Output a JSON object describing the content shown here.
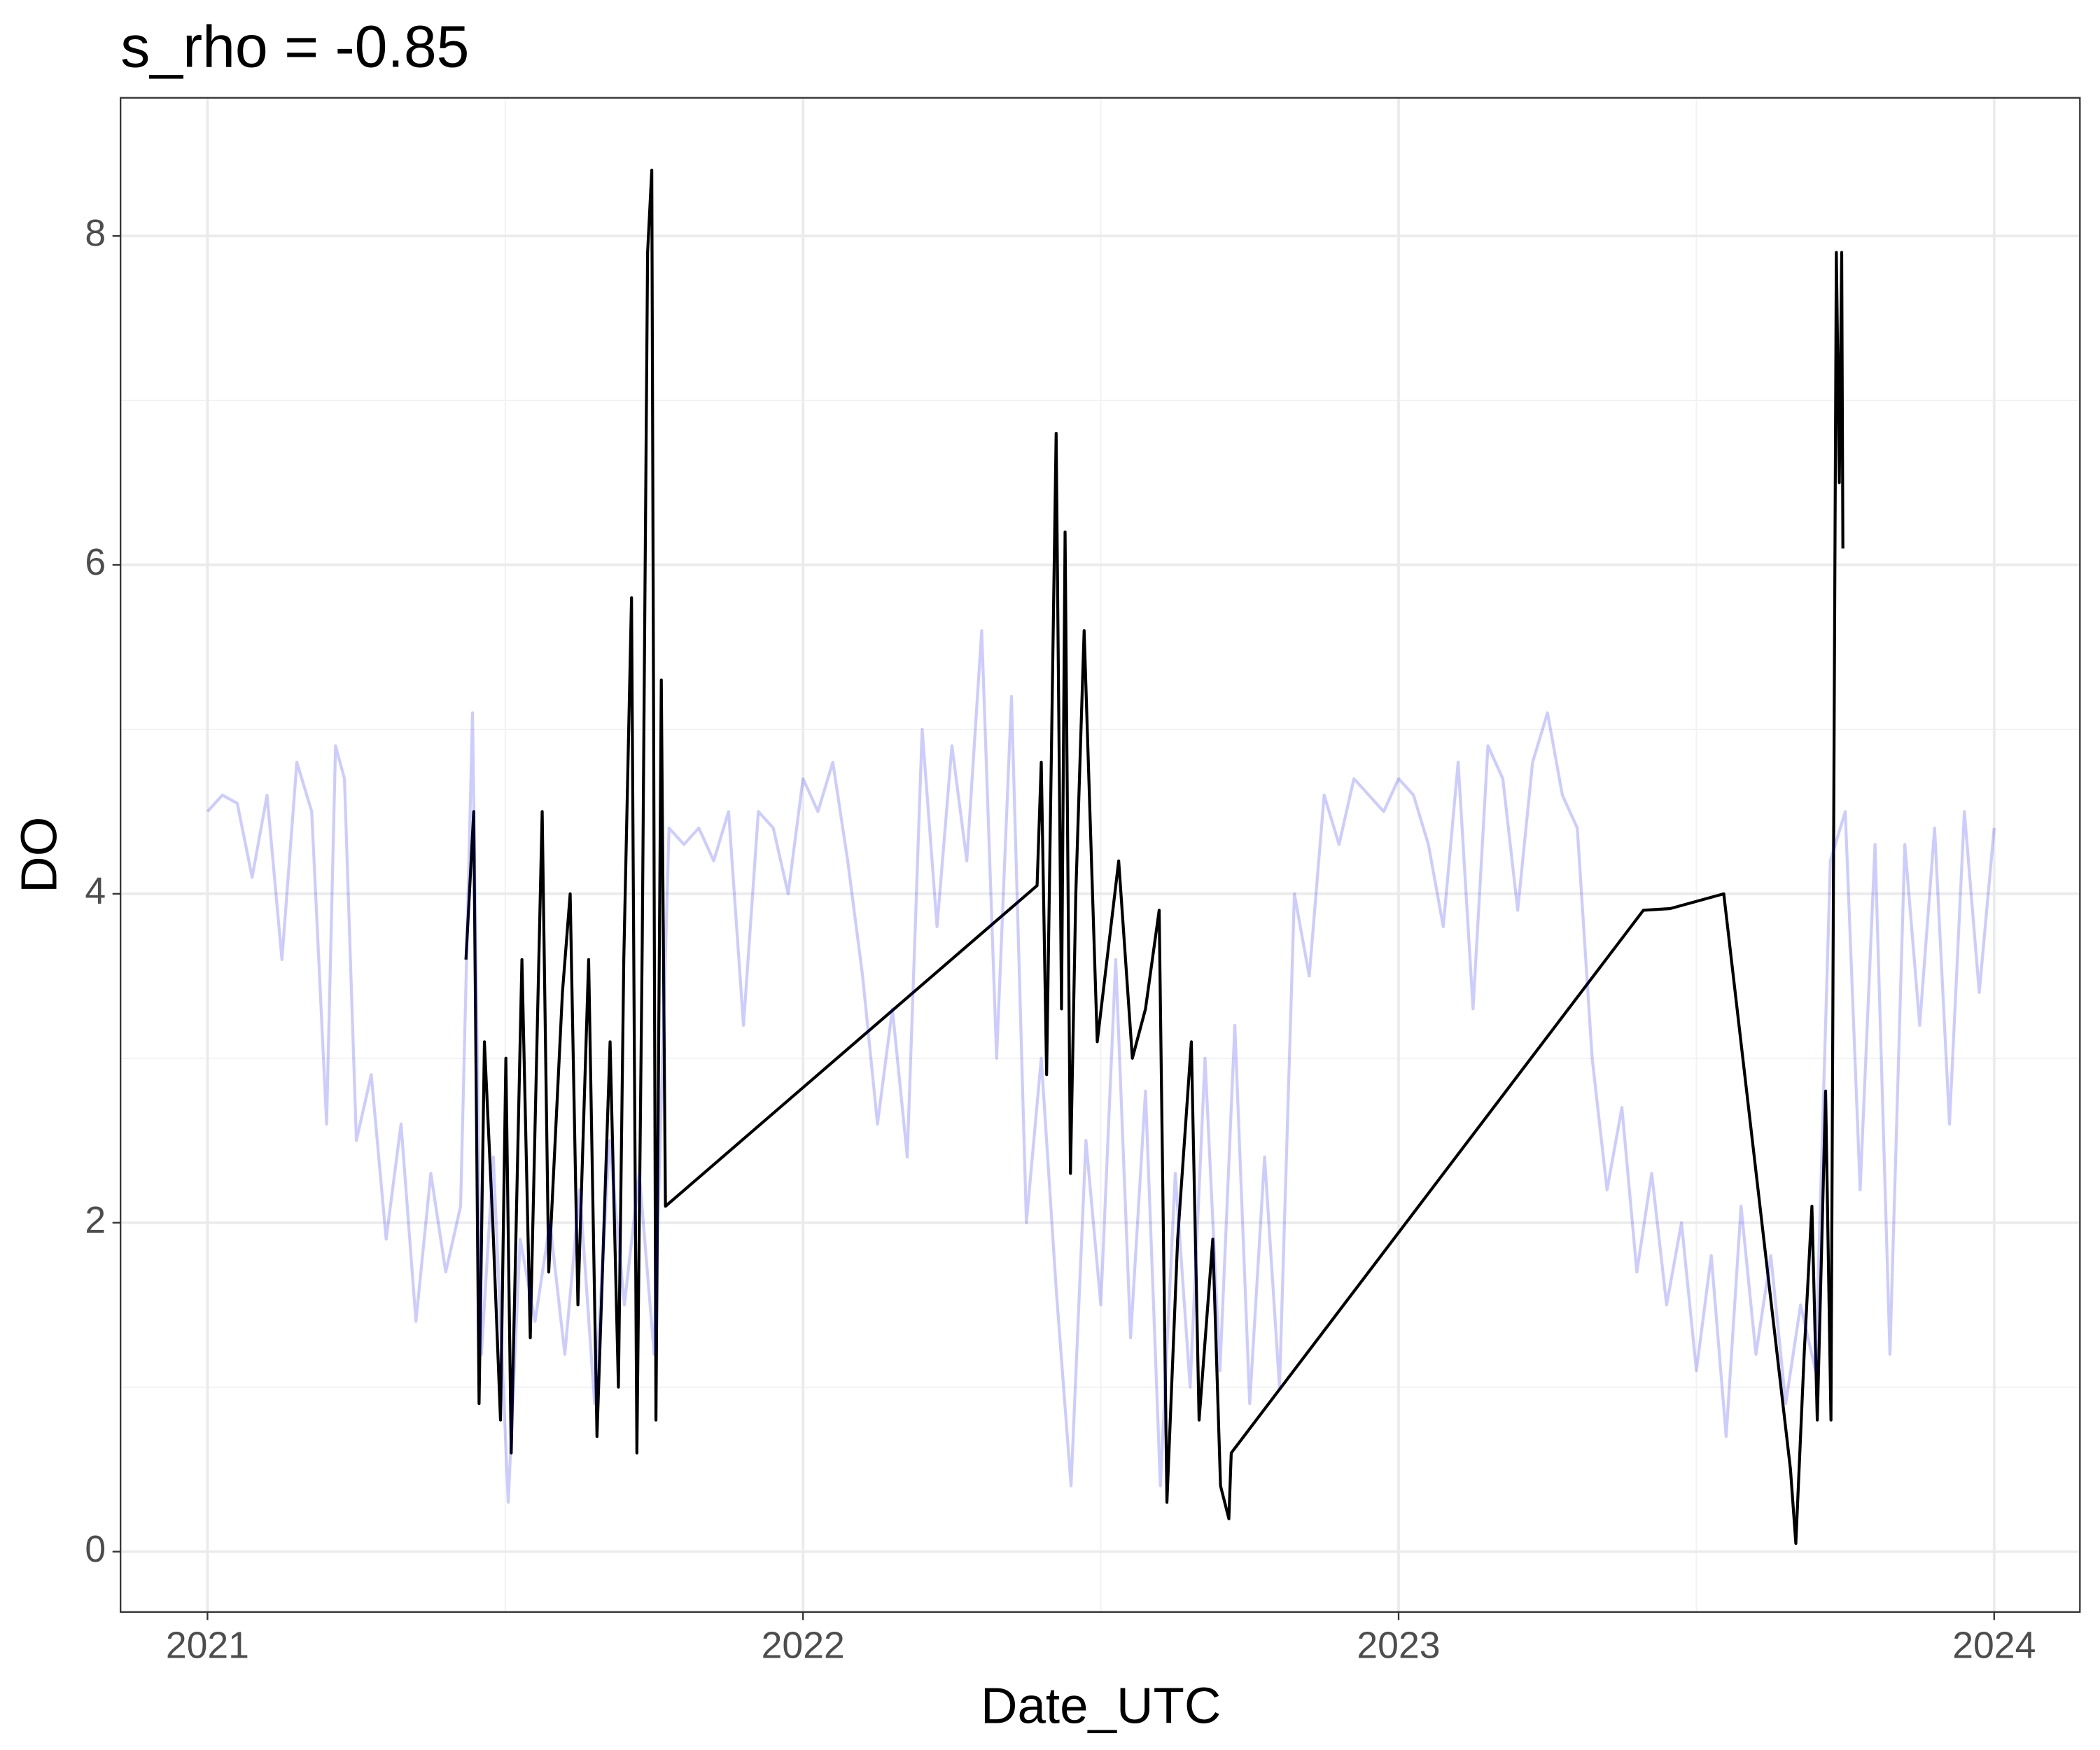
{
  "chart_data": {
    "type": "line",
    "title": "s_rho = -0.85",
    "x_label": "Date_UTC",
    "y_label": "DO",
    "xlim": [
      2020.854,
      2024.144
    ],
    "ylim": [
      -0.367,
      8.84
    ],
    "xticks": [
      2021,
      2022,
      2023,
      2024
    ],
    "yticks": [
      0,
      2,
      4,
      6,
      8
    ],
    "x_minor_ticks": [
      2021.5,
      2022.5,
      2023.5
    ],
    "y_minor_ticks": [
      1,
      3,
      5,
      7
    ],
    "grid": true,
    "series": [
      {
        "color": "#000000",
        "opacity": 1,
        "x": [
          2021.434,
          2021.447,
          2021.456,
          2021.465,
          2021.479,
          2021.492,
          2021.501,
          2021.51,
          2021.528,
          2021.542,
          2021.562,
          2021.573,
          2021.596,
          2021.609,
          2021.622,
          2021.64,
          2021.654,
          2021.676,
          2021.69,
          2021.699,
          2021.712,
          2021.721,
          2021.73,
          2021.739,
          2021.746,
          2021.753,
          2021.762,
          2021.769,
          2022.393,
          2022.4,
          2022.409,
          2022.425,
          2022.434,
          2022.44,
          2022.449,
          2022.458,
          2022.472,
          2022.494,
          2022.53,
          2022.553,
          2022.575,
          2022.598,
          2022.611,
          2022.629,
          2022.652,
          2022.665,
          2022.688,
          2022.701,
          2022.715,
          2022.719,
          2023.411,
          2023.456,
          2023.546,
          2023.658,
          2023.667,
          2023.681,
          2023.694,
          2023.703,
          2023.717,
          2023.726,
          2023.735,
          2023.74,
          2023.744,
          2023.746
        ],
        "values": [
          3.6,
          4.5,
          0.9,
          3.1,
          2.0,
          0.8,
          3.0,
          0.6,
          3.6,
          1.3,
          4.5,
          1.7,
          3.4,
          4.0,
          1.5,
          3.6,
          0.7,
          3.1,
          1.0,
          3.6,
          5.8,
          0.6,
          3.7,
          7.9,
          8.4,
          0.8,
          5.3,
          2.1,
          4.05,
          4.8,
          2.9,
          6.8,
          3.3,
          6.2,
          2.3,
          4.0,
          5.6,
          3.1,
          4.2,
          3.0,
          3.3,
          3.9,
          0.3,
          1.9,
          3.1,
          0.8,
          1.9,
          0.4,
          0.2,
          0.6,
          3.9,
          3.91,
          4.0,
          0.5,
          0.05,
          1.2,
          2.1,
          0.8,
          2.8,
          0.8,
          7.9,
          6.5,
          7.9,
          6.1
        ]
      },
      {
        "color": "#0000ff",
        "opacity": 0.2,
        "x": [
          2021.0,
          2021.025,
          2021.05,
          2021.075,
          2021.1,
          2021.125,
          2021.15,
          2021.175,
          2021.2,
          2021.215,
          2021.23,
          2021.25,
          2021.275,
          2021.3,
          2021.325,
          2021.35,
          2021.375,
          2021.4,
          2021.425,
          2021.445,
          2021.46,
          2021.48,
          2021.505,
          2021.525,
          2021.55,
          2021.575,
          2021.6,
          2021.625,
          2021.65,
          2021.675,
          2021.7,
          2021.725,
          2021.75,
          2021.775,
          2021.8,
          2021.825,
          2021.85,
          2021.875,
          2021.9,
          2021.925,
          2021.95,
          2021.975,
          2022.0,
          2022.025,
          2022.05,
          2022.075,
          2022.1,
          2022.125,
          2022.15,
          2022.175,
          2022.2,
          2022.225,
          2022.25,
          2022.275,
          2022.3,
          2022.325,
          2022.35,
          2022.375,
          2022.4,
          2022.425,
          2022.45,
          2022.475,
          2022.5,
          2022.525,
          2022.55,
          2022.575,
          2022.6,
          2022.625,
          2022.65,
          2022.675,
          2022.7,
          2022.725,
          2022.75,
          2022.775,
          2022.8,
          2022.825,
          2022.85,
          2022.875,
          2022.9,
          2022.925,
          2022.95,
          2022.975,
          2023.0,
          2023.025,
          2023.05,
          2023.075,
          2023.1,
          2023.125,
          2023.15,
          2023.175,
          2023.2,
          2023.225,
          2023.25,
          2023.275,
          2023.3,
          2023.325,
          2023.35,
          2023.375,
          2023.4,
          2023.425,
          2023.45,
          2023.475,
          2023.5,
          2023.525,
          2023.55,
          2023.575,
          2023.6,
          2023.625,
          2023.65,
          2023.675,
          2023.7,
          2023.725,
          2023.75,
          2023.775,
          2023.8,
          2023.825,
          2023.85,
          2023.875,
          2023.9,
          2023.925,
          2023.95,
          2023.975,
          2024.0
        ],
        "values": [
          4.5,
          4.6,
          4.55,
          4.1,
          4.6,
          3.6,
          4.8,
          4.5,
          2.6,
          4.9,
          4.7,
          2.5,
          2.9,
          1.9,
          2.6,
          1.4,
          2.3,
          1.7,
          2.1,
          5.1,
          1.2,
          2.4,
          0.3,
          1.9,
          1.4,
          2.0,
          1.2,
          2.2,
          0.9,
          2.5,
          1.5,
          2.3,
          1.2,
          4.4,
          4.3,
          4.4,
          4.2,
          4.5,
          3.2,
          4.5,
          4.4,
          4.0,
          4.7,
          4.5,
          4.8,
          4.2,
          3.5,
          2.6,
          3.3,
          2.4,
          5.0,
          3.8,
          4.9,
          4.2,
          5.6,
          3.0,
          5.2,
          2.0,
          3.0,
          1.6,
          0.4,
          2.5,
          1.5,
          3.6,
          1.3,
          2.8,
          0.4,
          2.3,
          1.0,
          3.0,
          1.1,
          3.2,
          0.9,
          2.4,
          1.0,
          4.0,
          3.5,
          4.6,
          4.3,
          4.7,
          4.6,
          4.5,
          4.7,
          4.6,
          4.3,
          3.8,
          4.8,
          3.3,
          4.9,
          4.7,
          3.9,
          4.8,
          5.1,
          4.6,
          4.4,
          3.0,
          2.2,
          2.7,
          1.7,
          2.3,
          1.5,
          2.0,
          1.1,
          1.8,
          0.7,
          2.1,
          1.2,
          1.8,
          0.9,
          1.5,
          1.1,
          4.2,
          4.5,
          2.2,
          4.3,
          1.2,
          4.3,
          3.2,
          4.4,
          2.6,
          4.5,
          3.4,
          4.4
        ]
      }
    ]
  }
}
